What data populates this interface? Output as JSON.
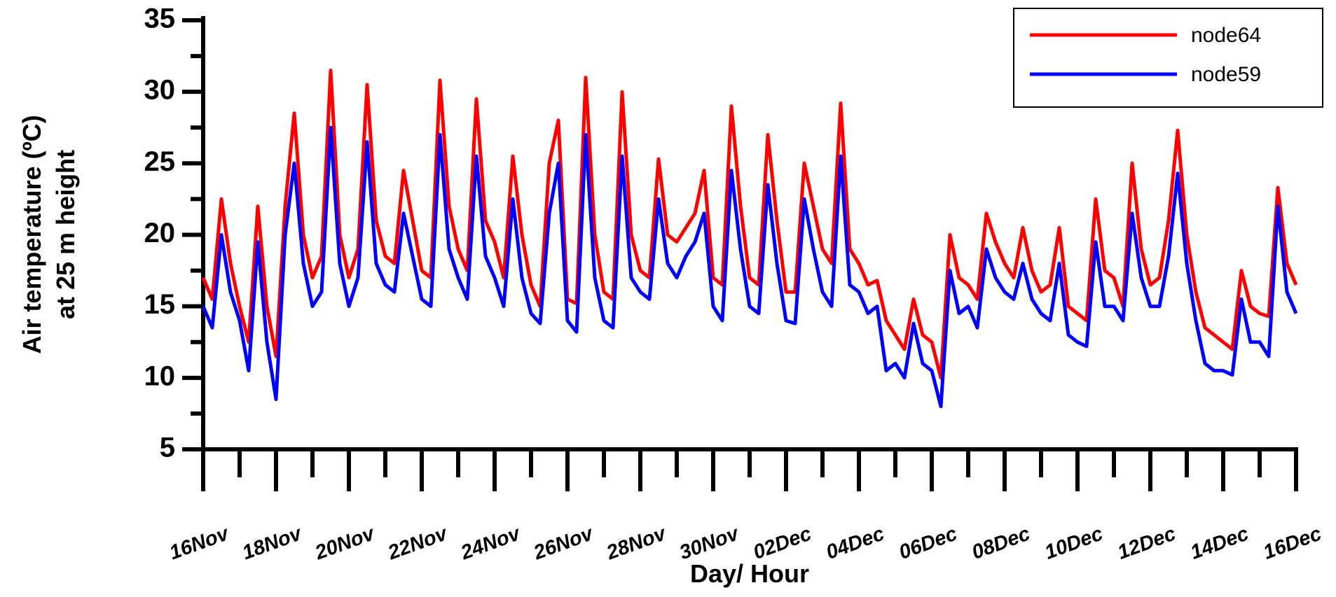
{
  "chart_data": {
    "type": "line",
    "x_label": "Day/ Hour",
    "y_label": [
      "Air temperature (ºC)",
      "at 25 m height"
    ],
    "xlim": [
      0,
      30
    ],
    "ylim": [
      5,
      35
    ],
    "xticks": [
      {
        "value": 0,
        "label": "16Nov"
      },
      {
        "value": 2,
        "label": "18Nov"
      },
      {
        "value": 4,
        "label": "20Nov"
      },
      {
        "value": 6,
        "label": "22Nov"
      },
      {
        "value": 8,
        "label": "24Nov"
      },
      {
        "value": 10,
        "label": "26Nov"
      },
      {
        "value": 12,
        "label": "28Nov"
      },
      {
        "value": 14,
        "label": "30Nov"
      },
      {
        "value": 16,
        "label": "02Dec"
      },
      {
        "value": 18,
        "label": "04Dec"
      },
      {
        "value": 20,
        "label": "06Dec"
      },
      {
        "value": 22,
        "label": "08Dec"
      },
      {
        "value": 24,
        "label": "10Dec"
      },
      {
        "value": 26,
        "label": "12Dec"
      },
      {
        "value": 28,
        "label": "14Dec"
      },
      {
        "value": 30,
        "label": "16Dec"
      }
    ],
    "yticks": [
      5,
      10,
      15,
      20,
      25,
      30,
      35
    ],
    "grid": false,
    "legend": "upper right",
    "x": [
      0,
      0.25,
      0.5,
      0.75,
      1,
      1.25,
      1.5,
      1.75,
      2,
      2.25,
      2.5,
      2.75,
      3,
      3.25,
      3.5,
      3.75,
      4,
      4.25,
      4.5,
      4.75,
      5,
      5.25,
      5.5,
      5.75,
      6,
      6.25,
      6.5,
      6.75,
      7,
      7.25,
      7.5,
      7.75,
      8,
      8.25,
      8.5,
      8.75,
      9,
      9.25,
      9.5,
      9.75,
      10,
      10.25,
      10.5,
      10.75,
      11,
      11.25,
      11.5,
      11.75,
      12,
      12.25,
      12.5,
      12.75,
      13,
      13.25,
      13.5,
      13.75,
      14,
      14.25,
      14.5,
      14.75,
      15,
      15.25,
      15.5,
      15.75,
      16,
      16.25,
      16.5,
      16.75,
      17,
      17.25,
      17.5,
      17.75,
      18,
      18.25,
      18.5,
      18.75,
      19,
      19.25,
      19.5,
      19.75,
      20,
      20.25,
      20.5,
      20.75,
      21,
      21.25,
      21.5,
      21.75,
      22,
      22.25,
      22.5,
      22.75,
      23,
      23.25,
      23.5,
      23.75,
      24,
      24.25,
      24.5,
      24.75,
      25,
      25.25,
      25.5,
      25.75,
      26,
      26.25,
      26.5,
      26.75,
      27,
      27.25,
      27.5,
      27.75,
      28,
      28.25,
      28.5,
      28.75,
      29,
      29.25,
      29.5,
      29.75,
      30
    ],
    "series": [
      {
        "name": "node64",
        "color": "#ff0000",
        "values": [
          17,
          15.5,
          22.5,
          18,
          15,
          12.5,
          22,
          15,
          11.5,
          22,
          28.5,
          20,
          17,
          18.5,
          31.5,
          20,
          17,
          19,
          30.5,
          21,
          18.5,
          18,
          24.5,
          21,
          17.5,
          17,
          30.8,
          22,
          19,
          17.5,
          29.5,
          21,
          19.5,
          17,
          25.5,
          20,
          16.5,
          15,
          25,
          28,
          15.5,
          15.2,
          31,
          20,
          16,
          15.5,
          30,
          20,
          17.5,
          17,
          25.3,
          20,
          19.5,
          20.5,
          21.5,
          24.5,
          17,
          16.5,
          29,
          22,
          17,
          16.5,
          27,
          21,
          16,
          16,
          25,
          22,
          19,
          18,
          29.2,
          19,
          18,
          16.5,
          16.8,
          14,
          13,
          12,
          15.5,
          13,
          12.5,
          10,
          20,
          17,
          16.5,
          15.5,
          21.5,
          19.5,
          18,
          17,
          20.5,
          17.5,
          16,
          16.5,
          20.5,
          15,
          14.5,
          14,
          22.5,
          17.5,
          17,
          15,
          25,
          19,
          16.5,
          17,
          21,
          27.3,
          20,
          16,
          13.5,
          13,
          12.5,
          12,
          17.5,
          15,
          14.5,
          14.3,
          23.3,
          18,
          16.5
        ]
      },
      {
        "name": "node59",
        "color": "#0000ff",
        "values": [
          15,
          13.5,
          20,
          16,
          14,
          10.5,
          19.5,
          12.5,
          8.5,
          20,
          25,
          18,
          15,
          16,
          27.5,
          18,
          15,
          17,
          26.5,
          18,
          16.5,
          16,
          21.5,
          18.5,
          15.5,
          15,
          27,
          19,
          17,
          15.5,
          25.5,
          18.5,
          17,
          15,
          22.5,
          17,
          14.5,
          13.8,
          21.5,
          25,
          14,
          13.2,
          27,
          17,
          14,
          13.5,
          25.5,
          17,
          16,
          15.5,
          22.5,
          18,
          17,
          18.5,
          19.5,
          21.5,
          15,
          14,
          24.5,
          19,
          15,
          14.5,
          23.5,
          18,
          14,
          13.8,
          22.5,
          19,
          16,
          15,
          25.5,
          16.5,
          16,
          14.5,
          15,
          10.5,
          11,
          10,
          13.8,
          11,
          10.5,
          8,
          17.5,
          14.5,
          15,
          13.5,
          19,
          17,
          16,
          15.5,
          18,
          15.5,
          14.5,
          14,
          18,
          13,
          12.5,
          12.2,
          19.5,
          15,
          15,
          14,
          21.5,
          17,
          15,
          15,
          18.5,
          24.3,
          18,
          14,
          11,
          10.5,
          10.5,
          10.2,
          15.5,
          12.5,
          12.5,
          11.5,
          22,
          16,
          14.5
        ]
      }
    ]
  }
}
